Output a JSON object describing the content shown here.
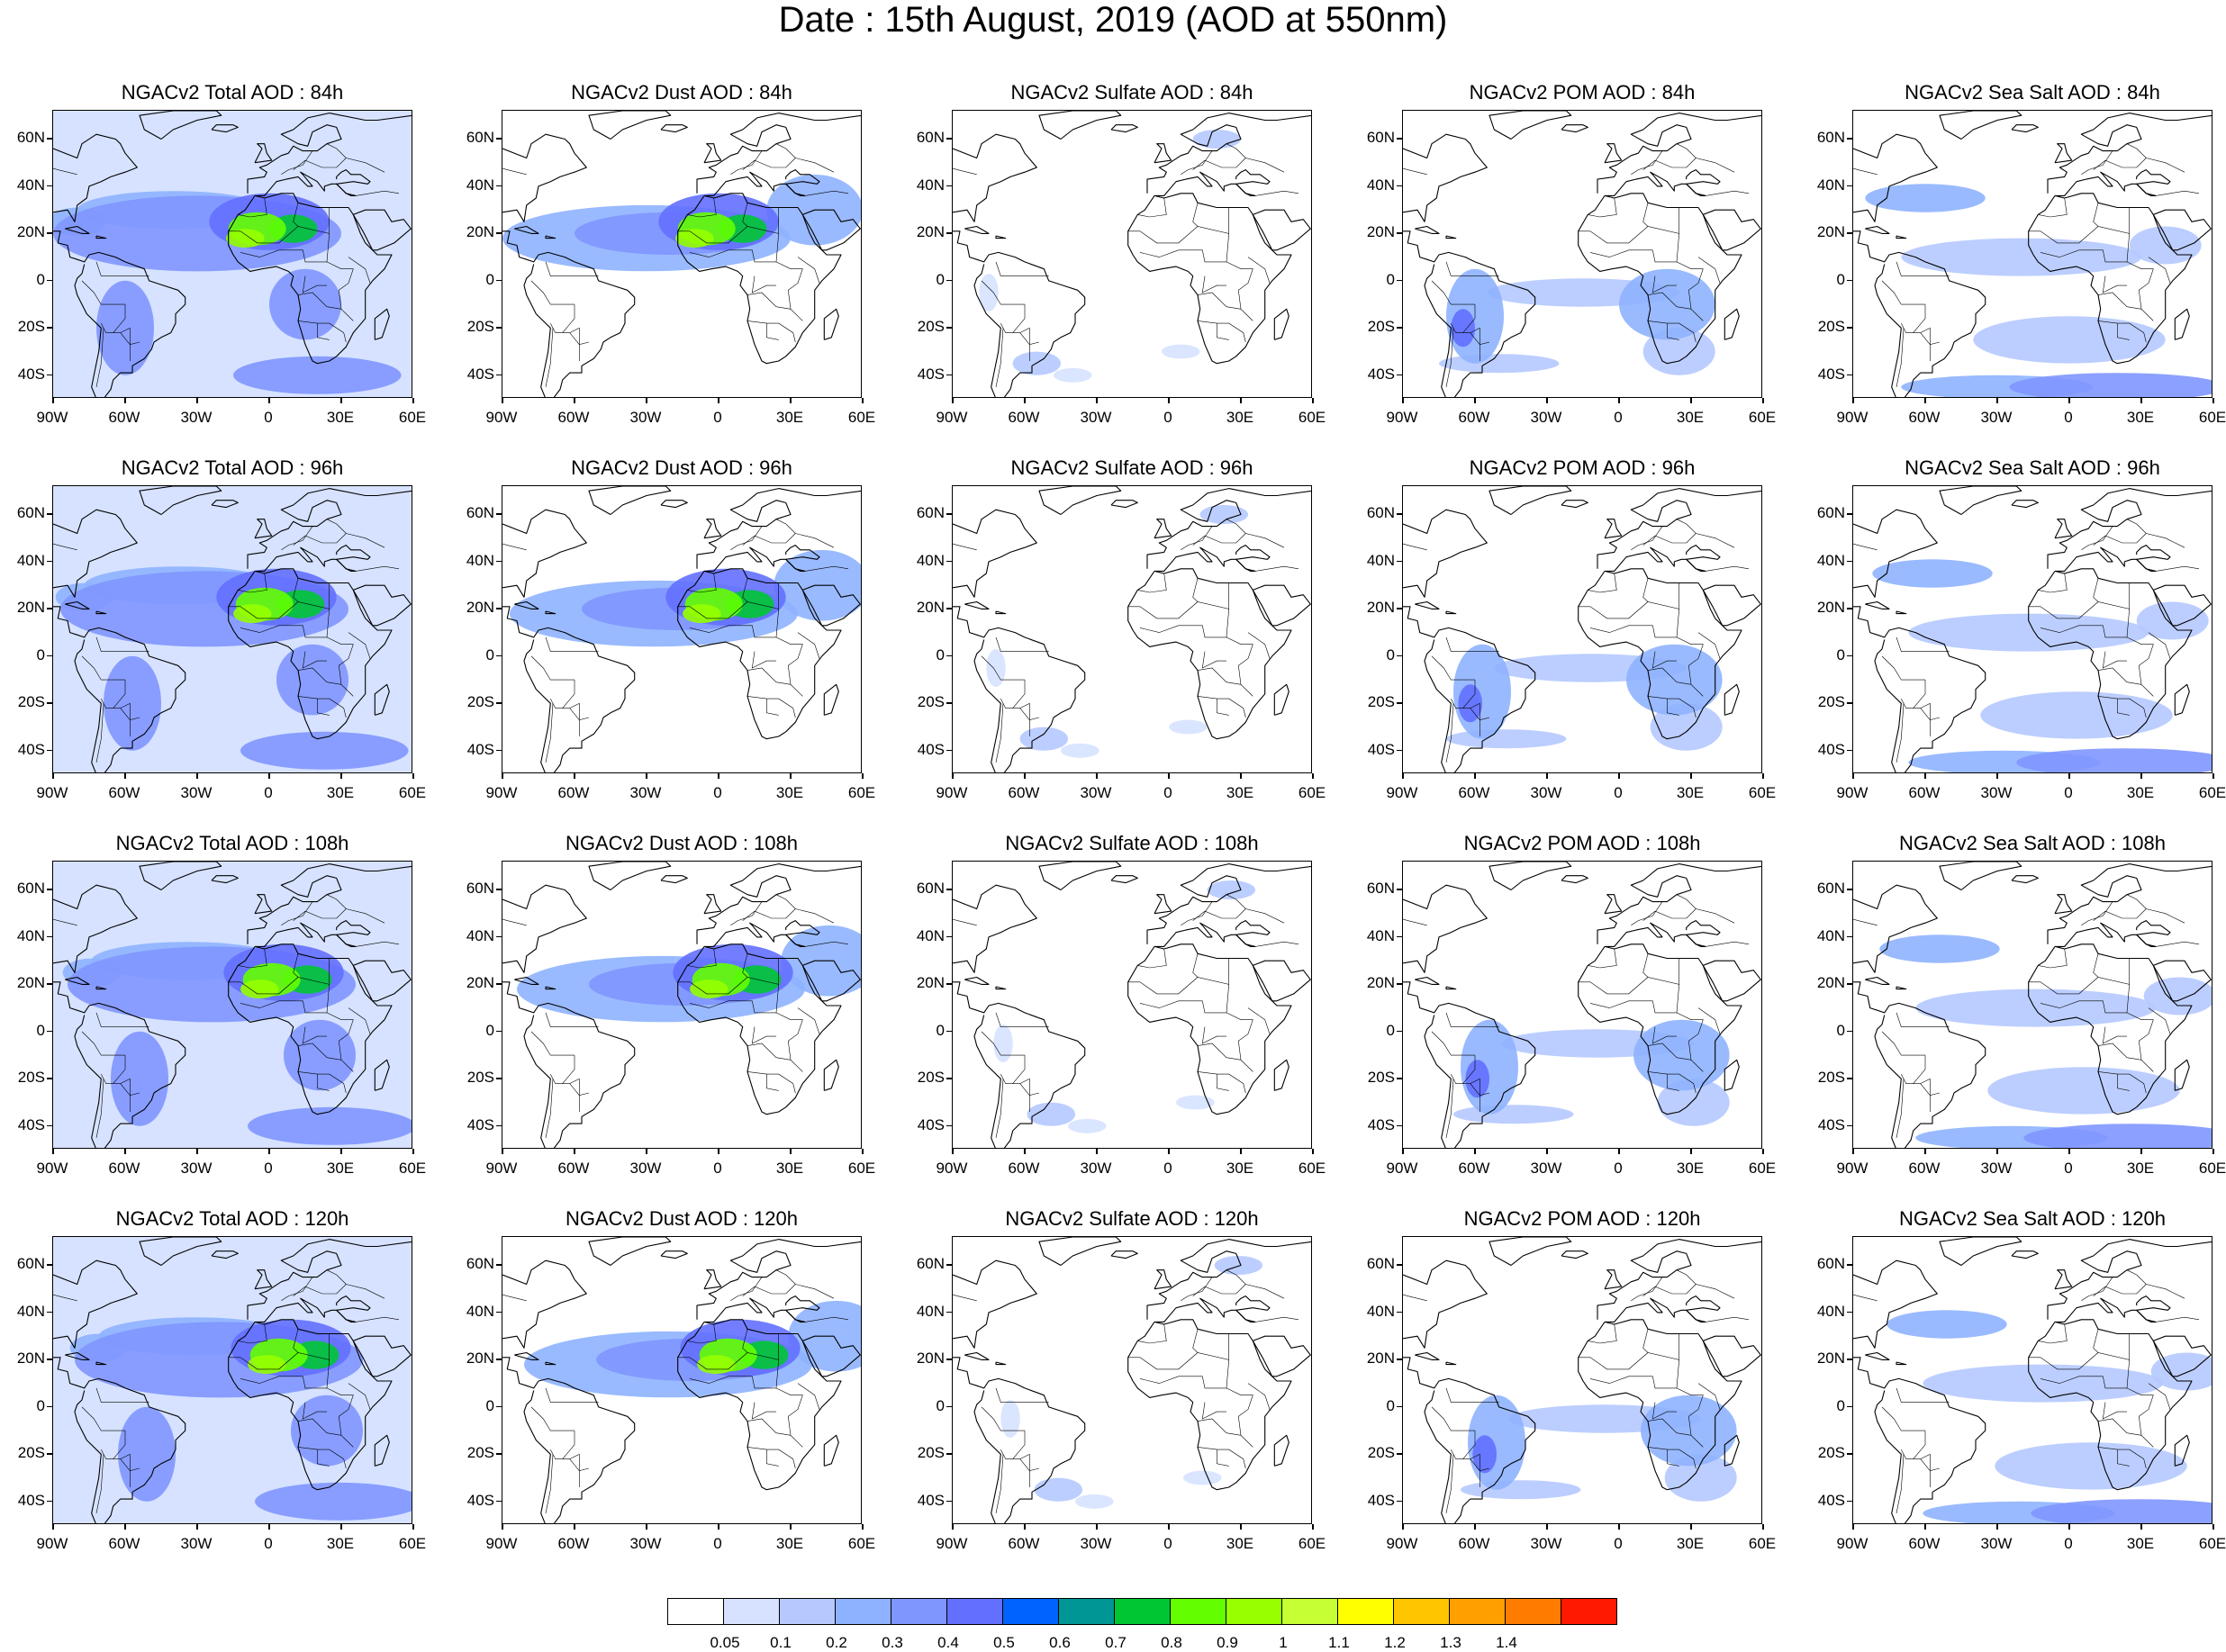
{
  "title": "Date : 15th August, 2019 (AOD at 550nm)",
  "rows": [
    {
      "panels": [
        "NGACv2 Total AOD : 84h",
        "NGACv2 Dust AOD : 84h",
        "NGACv2 Sulfate AOD : 84h",
        "NGACv2 POM AOD : 84h",
        "NGACv2 Sea Salt AOD : 84h"
      ]
    },
    {
      "panels": [
        "NGACv2 Total AOD : 96h",
        "NGACv2 Dust AOD : 96h",
        "NGACv2 Sulfate AOD : 96h",
        "NGACv2 POM AOD : 96h",
        "NGACv2 Sea Salt AOD : 96h"
      ]
    },
    {
      "panels": [
        "NGACv2 Total AOD : 108h",
        "NGACv2 Dust AOD : 108h",
        "NGACv2 Sulfate AOD : 108h",
        "NGACv2 POM AOD : 108h",
        "NGACv2 Sea Salt AOD : 108h"
      ]
    },
    {
      "panels": [
        "NGACv2 Total AOD : 120h",
        "NGACv2 Dust AOD : 120h",
        "NGACv2 Sulfate AOD : 120h",
        "NGACv2 POM AOD : 120h",
        "NGACv2 Sea Salt  AOD : 120h"
      ]
    }
  ],
  "map": {
    "lat_ticks": [
      "60N",
      "40N",
      "20N",
      "0",
      "20S",
      "40S"
    ],
    "lon_ticks": [
      "90W",
      "60W",
      "30W",
      "0",
      "30E",
      "60E"
    ],
    "lon_range": [
      -90,
      60
    ],
    "lat_range": [
      -50,
      72
    ]
  },
  "colorbar": {
    "labels": [
      "0.05",
      "0.1",
      "0.2",
      "0.3",
      "0.4",
      "0.5",
      "0.6",
      "0.7",
      "0.8",
      "0.9",
      "1",
      "1.1",
      "1.2",
      "1.3",
      "1.4"
    ],
    "colors": [
      "#ffffff",
      "#d6e2ff",
      "#b5c9ff",
      "#8eb2ff",
      "#7f96ff",
      "#6370ff",
      "#0063ff",
      "#009696",
      "#00c633",
      "#63ff00",
      "#96ff00",
      "#c6ff33",
      "#ffff00",
      "#ffc600",
      "#ffa000",
      "#ff7c00",
      "#ff1900"
    ]
  }
}
